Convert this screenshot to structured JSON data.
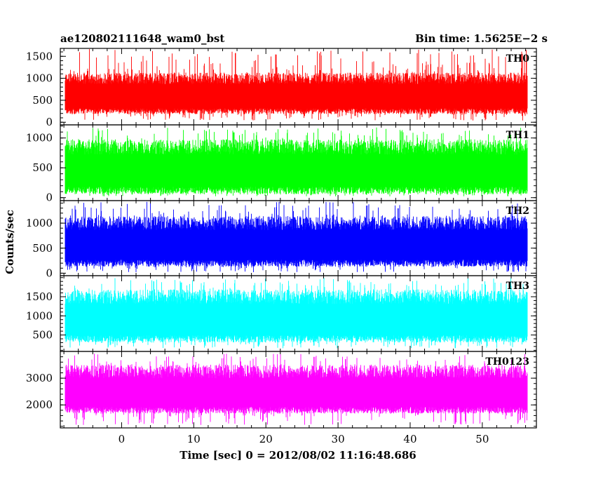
{
  "header": {
    "title": "ae120802111648_wam0_bst",
    "bin_time": "Bin time: 1.5625E−2 s"
  },
  "chart_data": {
    "type": "line",
    "xlabel": "Time [sec] 0 = 2012/08/02 11:16:48.686",
    "ylabel": "Counts/sec",
    "xlim": [
      -8.5,
      57.5
    ],
    "x_range_data": [
      -7.8,
      56.2
    ],
    "x_ticks": [
      0,
      10,
      20,
      30,
      40,
      50
    ],
    "x_tick_labels": [
      "0",
      "10",
      "20",
      "30",
      "40",
      "50"
    ],
    "grid": false,
    "panels": [
      {
        "name": "TH0",
        "color": "#ff0000",
        "ylim": [
          -60,
          1680
        ],
        "ticks": [
          0,
          500,
          1000,
          1500
        ],
        "tick_labels": [
          "0",
          "500",
          "1000",
          "1500"
        ],
        "range": [
          250,
          1000
        ],
        "spike_range": [
          40,
          1670
        ]
      },
      {
        "name": "TH1",
        "color": "#00ff00",
        "ylim": [
          -50,
          1220
        ],
        "ticks": [
          0,
          500,
          1000
        ],
        "tick_labels": [
          "0",
          "500",
          "1000"
        ],
        "range": [
          120,
          850
        ],
        "spike_range": [
          20,
          1180
        ]
      },
      {
        "name": "TH2",
        "color": "#0000ff",
        "ylim": [
          -50,
          1450
        ],
        "ticks": [
          0,
          500,
          1000
        ],
        "tick_labels": [
          "0",
          "500",
          "1000"
        ],
        "range": [
          200,
          1000
        ],
        "spike_range": [
          20,
          1430
        ]
      },
      {
        "name": "TH3",
        "color": "#00ffff",
        "ylim": [
          70,
          2050
        ],
        "ticks": [
          500,
          1000,
          1500
        ],
        "tick_labels": [
          "500",
          "1000",
          "1500"
        ],
        "range": [
          400,
          1500
        ],
        "spike_range": [
          150,
          2000
        ]
      },
      {
        "name": "TH0123",
        "color": "#ff00ff",
        "ylim": [
          1140,
          4000
        ],
        "ticks": [
          2000,
          3000
        ],
        "tick_labels": [
          "2000",
          "3000"
        ],
        "range": [
          1800,
          3250
        ],
        "spike_range": [
          1250,
          3920
        ]
      }
    ]
  }
}
